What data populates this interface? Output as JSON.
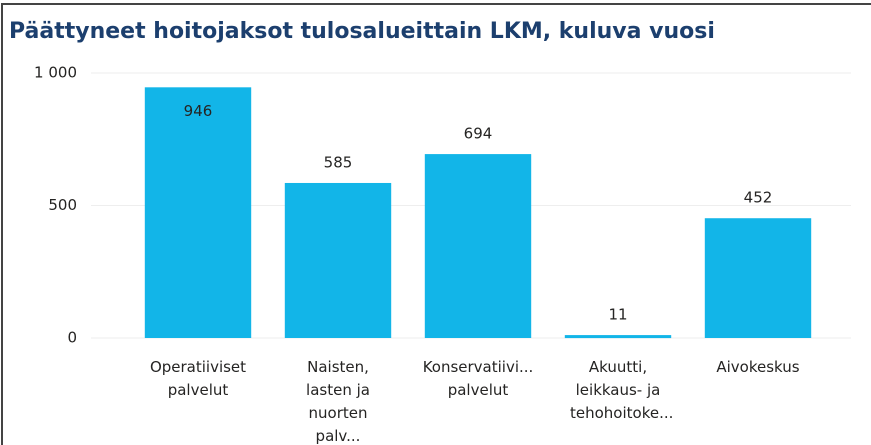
{
  "chart_data": {
    "type": "bar",
    "title": "Päättyneet hoitojaksot tulosalueittain LKM, kuluva vuosi",
    "categories": [
      "Operatiiviset palvelut",
      "Naisten, lasten ja nuorten palv...",
      "Konservatiivi... palvelut",
      "Akuutti, leikkaus- ja tehohoitoke...",
      "Aivokeskus"
    ],
    "values": [
      946,
      585,
      694,
      11,
      452
    ],
    "color": "#12b5e8",
    "ylim": [
      0,
      1000
    ],
    "yticks": [
      0,
      500,
      {
        "value": 1000,
        "label": "1 000"
      }
    ],
    "grid": true
  }
}
